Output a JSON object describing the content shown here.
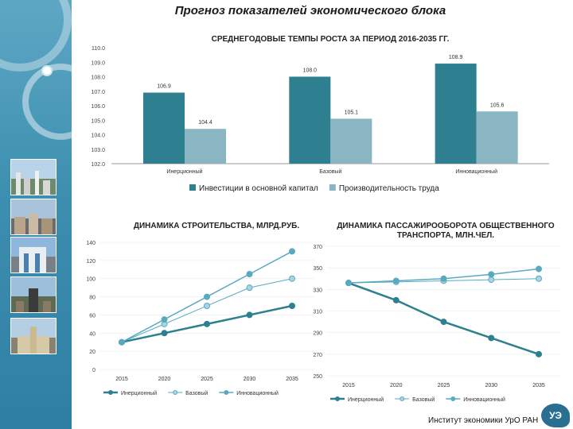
{
  "page": {
    "title": "Прогноз показателей экономического блока",
    "footer": "Институт экономики УрО РАН",
    "logo_text": "УЭ"
  },
  "colors": {
    "dark": "#2e7f8f",
    "light": "#8ab6c4",
    "mid": "#5aa9c0",
    "sidebar": "#3d8fb0"
  },
  "sidebar": {
    "thumbnails": [
      "city-panorama",
      "city-street",
      "modern-building",
      "monument",
      "historic-building"
    ]
  },
  "chart_data": [
    {
      "type": "bar",
      "title": "СРЕДНЕГОДОВЫЕ ТЕМПЫ РОСТА ЗА ПЕРИОД 2016-2035 ГГ.",
      "categories": [
        "Инерционный",
        "Базовый",
        "Инновационный"
      ],
      "ylim": [
        102.0,
        110.0
      ],
      "yticks": [
        "102.0",
        "103.0",
        "104.0",
        "105.0",
        "106.0",
        "107.0",
        "108.0",
        "109.0",
        "110.0"
      ],
      "series": [
        {
          "name": "Инвестиции в основной капитал",
          "values": [
            106.9,
            108.0,
            108.9
          ],
          "labels": [
            "106.9",
            "108.0",
            "108.9"
          ]
        },
        {
          "name": "Производительность труда",
          "values": [
            104.4,
            105.1,
            105.6
          ],
          "labels": [
            "104.4",
            "105.1",
            "105.6"
          ]
        }
      ],
      "legend": "bottom"
    },
    {
      "type": "line",
      "title": "ДИНАМИКА СТРОИТЕЛЬСТВА, МЛРД.РУБ.",
      "x": [
        "2015",
        "2020",
        "2025",
        "2030",
        "2035"
      ],
      "ylim": [
        0,
        140
      ],
      "yticks": [
        "0",
        "20",
        "40",
        "60",
        "80",
        "100",
        "120",
        "140"
      ],
      "series": [
        {
          "name": "Инерционный",
          "values": [
            30,
            40,
            50,
            60,
            70
          ]
        },
        {
          "name": "Базовый",
          "values": [
            30,
            50,
            70,
            90,
            100
          ]
        },
        {
          "name": "Инновационный",
          "values": [
            30,
            55,
            80,
            105,
            130
          ]
        }
      ],
      "legend": "bottom"
    },
    {
      "type": "line",
      "title": "ДИНАМИКА ПАССАЖИРООБОРОТА ОБЩЕСТВЕННОГО ТРАНСПОРТА, МЛН.ЧЕЛ.",
      "title_lines": [
        "ДИНАМИКА ПАССАЖИРООБОРОТА ОБЩЕСТВЕННОГО",
        "ТРАНСПОРТА, МЛН.ЧЕЛ."
      ],
      "x": [
        "2015",
        "2020",
        "2025",
        "2030",
        "2035"
      ],
      "ylim": [
        250,
        370
      ],
      "yticks": [
        "250",
        "270",
        "290",
        "310",
        "330",
        "350",
        "370"
      ],
      "series": [
        {
          "name": "Инерционный",
          "values": [
            336,
            320,
            300,
            285,
            270
          ]
        },
        {
          "name": "Базовый",
          "values": [
            336,
            337,
            338,
            339,
            340
          ]
        },
        {
          "name": "Инновационный",
          "values": [
            336,
            338,
            340,
            344,
            349
          ]
        }
      ],
      "legend": "bottom"
    }
  ]
}
